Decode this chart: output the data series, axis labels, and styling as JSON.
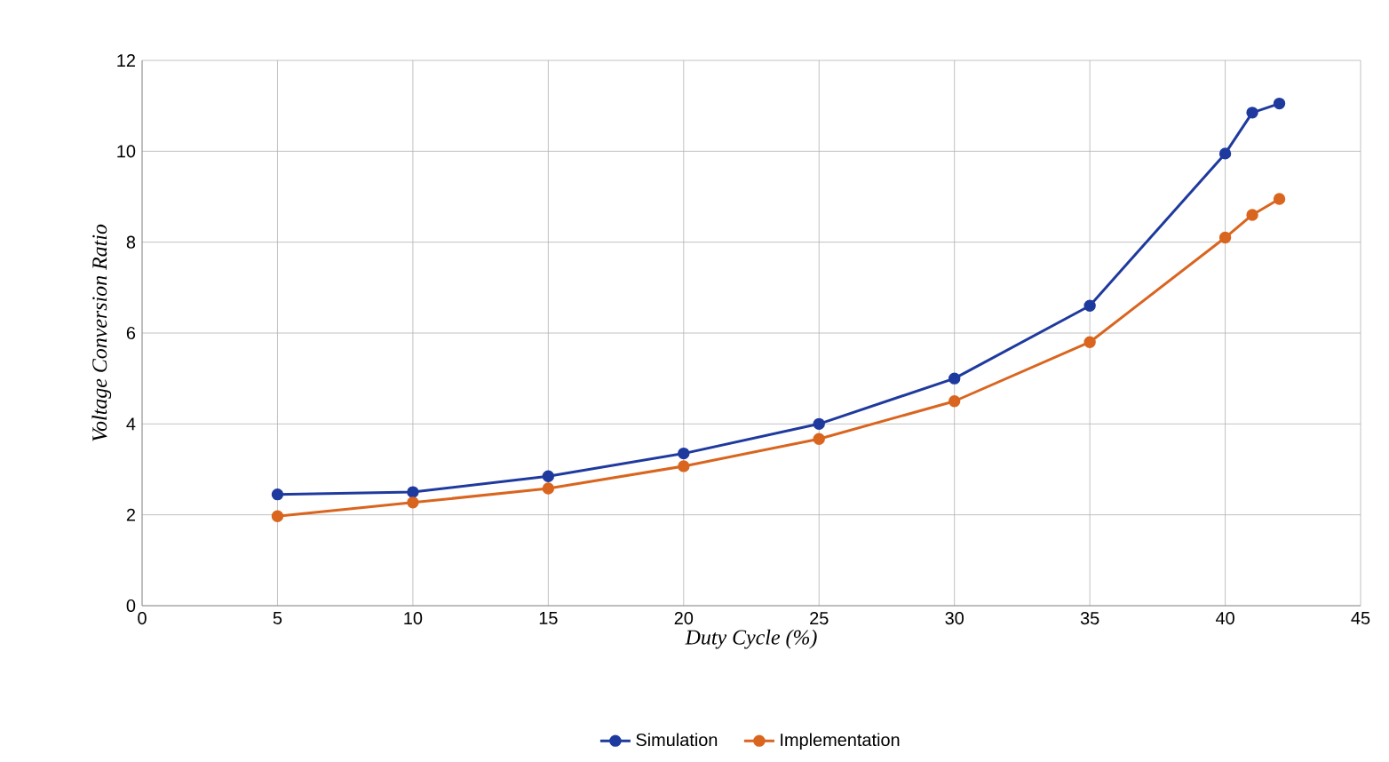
{
  "chart_data": {
    "type": "line",
    "xlabel": "Duty Cycle (%)",
    "ylabel": "Voltage Conversion Ratio",
    "x": [
      5,
      10,
      15,
      20,
      25,
      30,
      35,
      40,
      41,
      42
    ],
    "series": [
      {
        "name": "Simulation",
        "color": "#1f3a9e",
        "values": [
          2.45,
          2.5,
          2.85,
          3.35,
          4.0,
          5.0,
          6.6,
          9.95,
          10.85,
          11.05
        ]
      },
      {
        "name": "Implementation",
        "color": "#d9651f",
        "values": [
          1.97,
          2.27,
          2.58,
          3.07,
          3.67,
          4.5,
          5.8,
          8.1,
          8.6,
          8.95
        ]
      }
    ],
    "xlim": [
      0,
      45
    ],
    "xticks": [
      0,
      5,
      10,
      15,
      20,
      25,
      30,
      35,
      40,
      45
    ],
    "ylim": [
      0,
      12
    ],
    "yticks": [
      0,
      2,
      4,
      6,
      8,
      10,
      12
    ],
    "grid": true,
    "legend": "bottom",
    "marker": "circle",
    "line_style": "solid"
  }
}
